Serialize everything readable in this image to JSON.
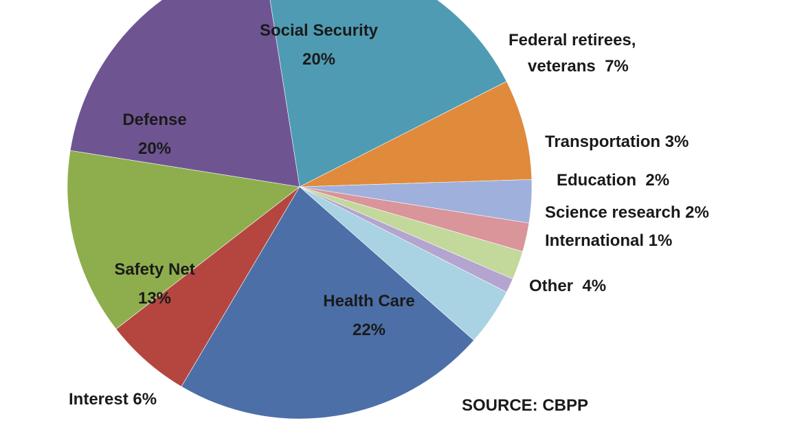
{
  "chart_data": {
    "type": "pie",
    "title": "",
    "slices": [
      {
        "label": "Social Security",
        "value": 20,
        "value_label": "20%",
        "color": "#4f9bb3"
      },
      {
        "label": "Federal retirees, veterans",
        "label_lines": [
          "Federal retirees,",
          "veterans  7%"
        ],
        "value": 7,
        "value_label": "7%",
        "color": "#e08a3c"
      },
      {
        "label": "Transportation",
        "label_lines": [
          "Transportation 3%"
        ],
        "value": 3,
        "value_label": "3%",
        "color": "#9fb0dc"
      },
      {
        "label": "Education",
        "label_lines": [
          "Education  2%"
        ],
        "value": 2,
        "value_label": "2%",
        "color": "#d9959a"
      },
      {
        "label": "Science research",
        "label_lines": [
          "Science research 2%"
        ],
        "value": 2,
        "value_label": "2%",
        "color": "#c3d89b"
      },
      {
        "label": "International",
        "label_lines": [
          "International 1%"
        ],
        "value": 1,
        "value_label": "1%",
        "color": "#b3a5cf"
      },
      {
        "label": "Other",
        "label_lines": [
          "Other  4%"
        ],
        "value": 4,
        "value_label": "4%",
        "color": "#a9d2e3"
      },
      {
        "label": "Health Care",
        "value": 22,
        "value_label": "22%",
        "color": "#4c6fa8"
      },
      {
        "label": "Interest",
        "label_lines": [
          "Interest 6%"
        ],
        "value": 6,
        "value_label": "6%",
        "color": "#b5463f"
      },
      {
        "label": "Safety Net",
        "value": 13,
        "value_label": "13%",
        "color": "#8eae4e"
      },
      {
        "label": "Defense",
        "value": 20,
        "value_label": "20%",
        "color": "#6e5592"
      }
    ],
    "source": "SOURCE: CBPP"
  }
}
